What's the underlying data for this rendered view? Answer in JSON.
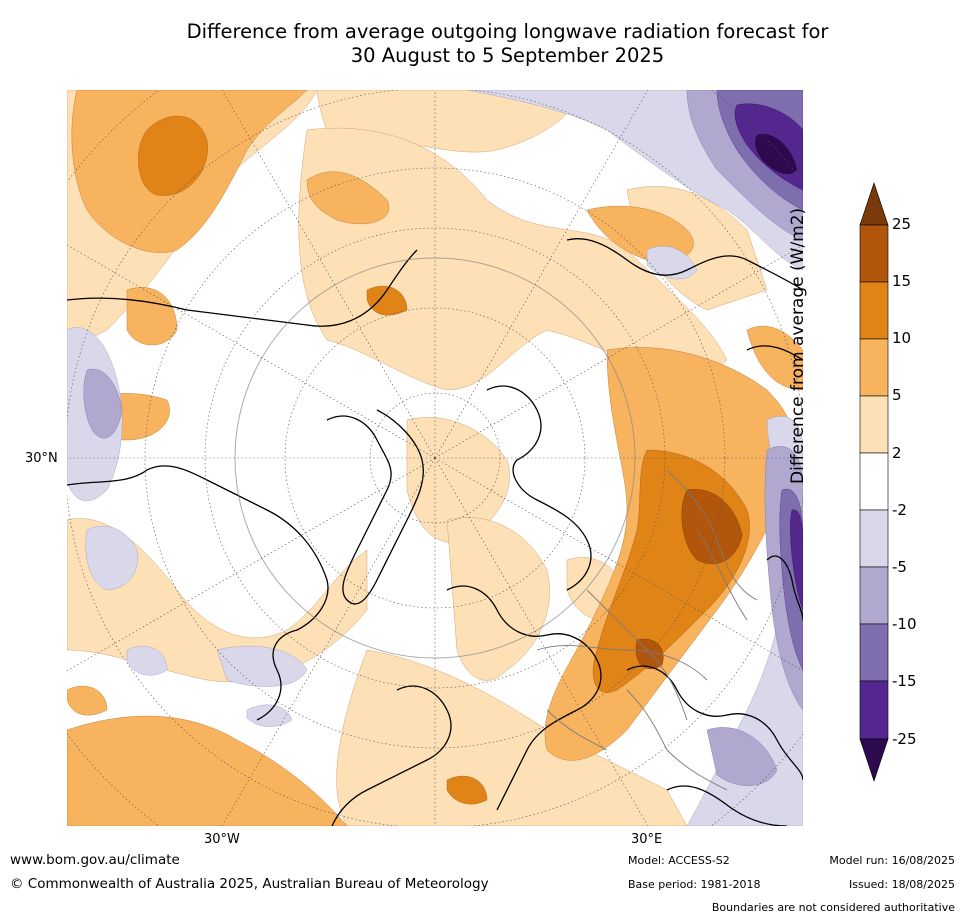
{
  "title_line1": "Difference from average outgoing longwave radiation forecast for",
  "title_line2": "30 August to 5 September 2025",
  "map": {
    "lat_label": "30°N",
    "lon_labels": [
      "30°W",
      "30°E"
    ]
  },
  "colorbar": {
    "title": "Difference from average (W/m2)",
    "ticks": [
      "25",
      "15",
      "10",
      "5",
      "2",
      "-2",
      "-5",
      "-10",
      "-15",
      "-25"
    ],
    "colors": {
      "above_25": "#7a3a0a",
      "15_to_25": "#b2560c",
      "10_to_15": "#e08418",
      "5_to_10": "#f8b35e",
      "2_to_5": "#fde0b6",
      "neutral": "#ffffff",
      "m5_to_m2": "#d8d8ea",
      "m10_to_m5": "#b0a8cf",
      "m15_to_m10": "#7e6eae",
      "m25_to_m15": "#54278f",
      "below_m25": "#2d0a4e"
    }
  },
  "footer": {
    "website": "www.bom.gov.au/climate",
    "copyright": "© Commonwealth of Australia 2025, Australian Bureau of Meteorology",
    "model": "Model: ACCESS-S2",
    "base_period": "Base period: 1981-2018",
    "model_run": "Model run: 16/08/2025",
    "issued": "Issued: 18/08/2025",
    "disclaimer": "Boundaries are not considered authoritative"
  }
}
